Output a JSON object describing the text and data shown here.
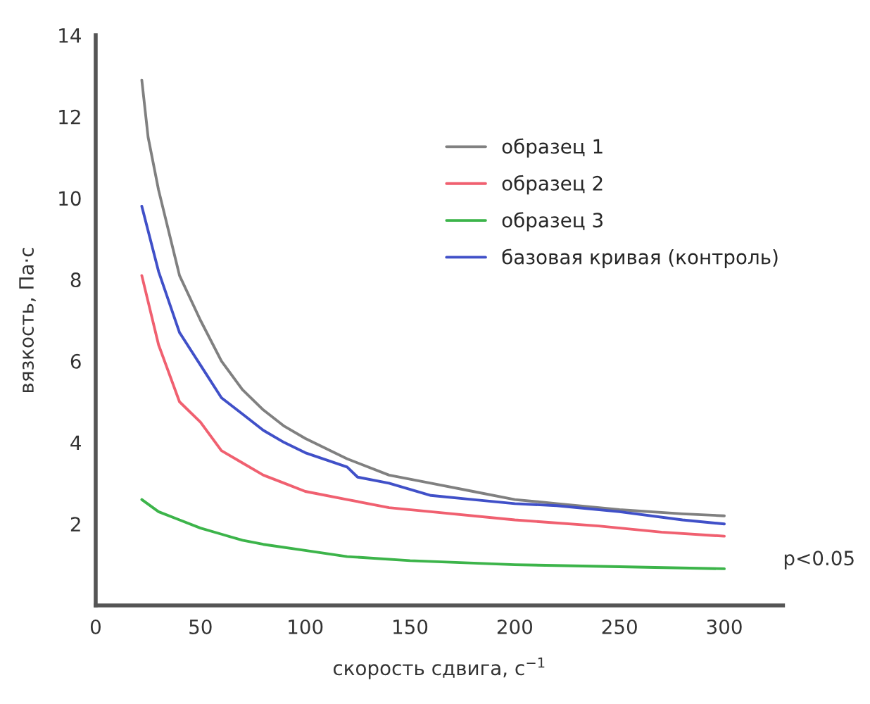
{
  "chart_data": {
    "type": "line",
    "xlabel": "скорость сдвига, с$^{−1}$",
    "ylabel": "вязкость, Па·с",
    "xlim": [
      0,
      328
    ],
    "ylim": [
      0,
      14
    ],
    "xticks": [
      0,
      50,
      100,
      150,
      200,
      250,
      300
    ],
    "yticks": [
      2,
      4,
      6,
      8,
      10,
      12,
      14
    ],
    "grid": false,
    "legend": "top right",
    "marker": "none",
    "line_style": "solid",
    "annotations": [
      "p<0.05"
    ],
    "series": [
      {
        "name": "образец 1",
        "color": "#808080",
        "x": [
          22,
          25,
          30,
          40,
          50,
          60,
          70,
          80,
          90,
          100,
          120,
          140,
          160,
          180,
          200,
          220,
          250,
          280,
          300
        ],
        "values": [
          12.9,
          11.5,
          10.2,
          8.1,
          7.0,
          6.0,
          5.3,
          4.8,
          4.4,
          4.1,
          3.6,
          3.2,
          3.0,
          2.8,
          2.6,
          2.5,
          2.35,
          2.25,
          2.2
        ]
      },
      {
        "name": "образец 2",
        "color": "#f06070",
        "x": [
          22,
          30,
          40,
          50,
          60,
          70,
          80,
          90,
          100,
          120,
          140,
          160,
          200,
          240,
          270,
          300
        ],
        "values": [
          8.1,
          6.4,
          5.0,
          4.5,
          3.8,
          3.5,
          3.2,
          3.0,
          2.8,
          2.6,
          2.4,
          2.3,
          2.1,
          1.95,
          1.8,
          1.7
        ]
      },
      {
        "name": "образец 3",
        "color": "#3cb44a",
        "x": [
          22,
          30,
          40,
          50,
          60,
          70,
          80,
          100,
          120,
          150,
          200,
          250,
          300
        ],
        "values": [
          2.6,
          2.3,
          2.1,
          1.9,
          1.75,
          1.6,
          1.5,
          1.35,
          1.2,
          1.1,
          1.0,
          0.95,
          0.9
        ]
      },
      {
        "name": "базовая кривая (контроль)",
        "color": "#4050c8",
        "x": [
          22,
          30,
          40,
          50,
          60,
          70,
          80,
          90,
          100,
          120,
          125,
          140,
          160,
          180,
          200,
          220,
          250,
          280,
          300
        ],
        "values": [
          9.8,
          8.2,
          6.7,
          5.9,
          5.1,
          4.7,
          4.3,
          4.0,
          3.75,
          3.4,
          3.15,
          3.0,
          2.7,
          2.6,
          2.5,
          2.45,
          2.3,
          2.1,
          2.0
        ]
      }
    ]
  }
}
